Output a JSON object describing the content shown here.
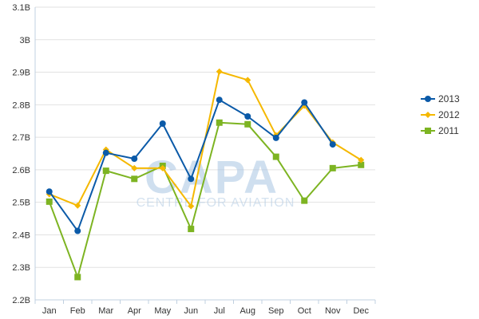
{
  "chart_data": {
    "type": "line",
    "categories": [
      "Jan",
      "Feb",
      "Mar",
      "Apr",
      "May",
      "Jun",
      "Jul",
      "Aug",
      "Sep",
      "Oct",
      "Nov",
      "Dec"
    ],
    "y_tick_labels": [
      "2.2B",
      "2.3B",
      "2.4B",
      "2.5B",
      "2.6B",
      "2.7B",
      "2.8B",
      "2.9B",
      "3B",
      "3.1B"
    ],
    "ylim": [
      2.2,
      3.1
    ],
    "y_unit": "B",
    "grid": "horizontal",
    "legend_position": "right",
    "series": [
      {
        "name": "2013",
        "color": "#0b5aa8",
        "marker": "circle",
        "values": [
          2.533,
          2.412,
          2.652,
          2.634,
          2.742,
          2.572,
          2.815,
          2.764,
          2.698,
          2.807,
          2.678,
          null
        ]
      },
      {
        "name": "2012",
        "color": "#f5b800",
        "marker": "diamond",
        "values": [
          2.525,
          2.49,
          2.662,
          2.605,
          2.605,
          2.488,
          2.902,
          2.876,
          2.706,
          2.797,
          2.684,
          2.63
        ]
      },
      {
        "name": "2011",
        "color": "#7db422",
        "marker": "square",
        "values": [
          2.502,
          2.27,
          2.597,
          2.572,
          2.612,
          2.418,
          2.745,
          2.74,
          2.64,
          2.505,
          2.605,
          2.615
        ]
      }
    ]
  },
  "watermark": {
    "logo_text": "CAPA",
    "subtitle": "CENTRE FOR AVIATION"
  }
}
